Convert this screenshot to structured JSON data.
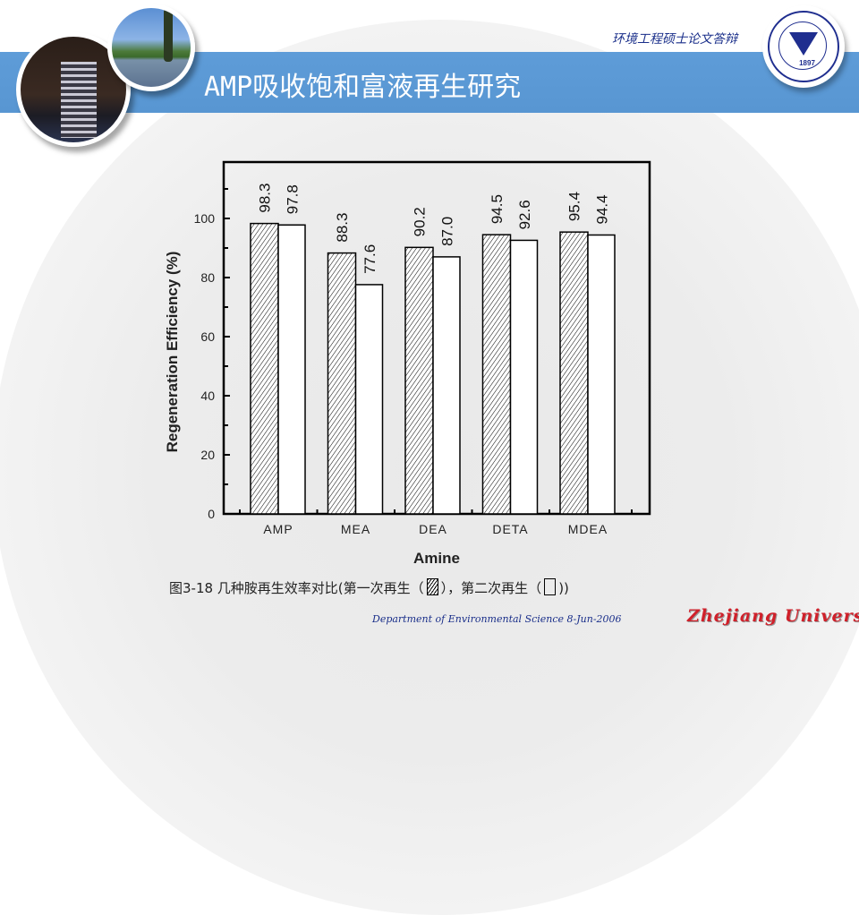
{
  "header": {
    "title": "AMP吸收饱和富液再生研究",
    "subtitle": "环境工程硕士论文答辩",
    "logo_text": "ZHEJIANG UNIVERSITY",
    "logo_year": "1897"
  },
  "caption": {
    "prefix": "图3-18 几种胺再生效率对比(第一次再生（",
    "middle": "），第二次再生（",
    "suffix": "))"
  },
  "footer": {
    "department": "Department of Environmental Science  8-Jun-2006",
    "university": "Zhejiang University"
  },
  "colors": {
    "title_band": "#5b9bd5",
    "title_text": "#ffffff",
    "subtitle_text": "#1a2f8a",
    "footer_uni": "#d0202a"
  },
  "chart_data": {
    "type": "bar",
    "title": "",
    "xlabel": "Amine",
    "ylabel": "Regeneration Efficiency (%)",
    "categories": [
      "AMP",
      "MEA",
      "DEA",
      "DETA",
      "MDEA"
    ],
    "series": [
      {
        "name": "第一次再生",
        "pattern": "hatched",
        "values": [
          98.3,
          88.3,
          90.2,
          94.5,
          95.4
        ]
      },
      {
        "name": "第二次再生",
        "pattern": "open",
        "values": [
          97.8,
          77.6,
          87.0,
          92.6,
          94.4
        ]
      }
    ],
    "data_labels": [
      [
        "98.3",
        "97.8"
      ],
      [
        "88.3",
        "77.6"
      ],
      [
        "90.2",
        "87.0"
      ],
      [
        "94.5",
        "92.6"
      ],
      [
        "95.4",
        "94.4"
      ]
    ],
    "yticks": [
      "0",
      "20",
      "40",
      "60",
      "80",
      "100"
    ],
    "ylim": [
      0,
      120
    ],
    "grid": false,
    "legend_position": "caption"
  }
}
